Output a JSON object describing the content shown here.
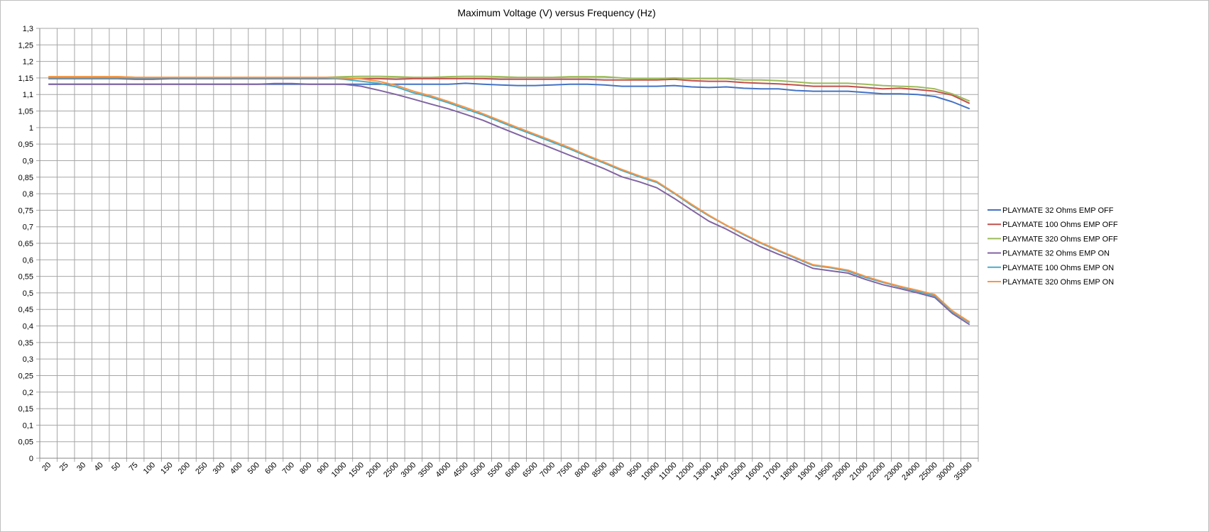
{
  "chart_data": {
    "type": "line",
    "title": "Maximum  Voltage  (V) versus  Frequency  (Hz)",
    "xlabel": "",
    "ylabel": "",
    "ylim": [
      0,
      1.3
    ],
    "y_ticks": [
      "0",
      "0,05",
      "0,1",
      "0,15",
      "0,2",
      "0,25",
      "0,3",
      "0,35",
      "0,4",
      "0,45",
      "0,5",
      "0,55",
      "0,6",
      "0,65",
      "0,7",
      "0,75",
      "0,8",
      "0,85",
      "0,9",
      "0,95",
      "1",
      "1,05",
      "1,1",
      "1,15",
      "1,2",
      "1,25",
      "1,3"
    ],
    "grid": true,
    "legend_position": "right",
    "categories": [
      "20",
      "25",
      "30",
      "40",
      "50",
      "75",
      "100",
      "150",
      "200",
      "250",
      "300",
      "400",
      "500",
      "600",
      "700",
      "800",
      "900",
      "1000",
      "1500",
      "2000",
      "2500",
      "3000",
      "3500",
      "4000",
      "4500",
      "5000",
      "5500",
      "6000",
      "6500",
      "7000",
      "7500",
      "8000",
      "8500",
      "9000",
      "9500",
      "10000",
      "11000",
      "12000",
      "13000",
      "14000",
      "15000",
      "16000",
      "17000",
      "18000",
      "19000",
      "19500",
      "20000",
      "21000",
      "22000",
      "23000",
      "24000",
      "25000",
      "30000",
      "35000"
    ],
    "series": [
      {
        "name": "PLAYMATE 32 Ohms EMP OFF",
        "color": "#4472c4",
        "values": [
          1.131,
          1.131,
          1.131,
          1.131,
          1.131,
          1.131,
          1.131,
          1.131,
          1.131,
          1.131,
          1.131,
          1.131,
          1.131,
          1.131,
          1.131,
          1.131,
          1.131,
          1.131,
          1.131,
          1.131,
          1.131,
          1.131,
          1.131,
          1.131,
          1.134,
          1.131,
          1.129,
          1.127,
          1.127,
          1.129,
          1.131,
          1.131,
          1.129,
          1.125,
          1.125,
          1.125,
          1.127,
          1.123,
          1.121,
          1.123,
          1.119,
          1.117,
          1.117,
          1.112,
          1.11,
          1.11,
          1.11,
          1.106,
          1.102,
          1.102,
          1.1,
          1.094,
          1.078,
          1.057
        ]
      },
      {
        "name": "PLAYMATE 100 Ohms EMP OFF",
        "color": "#c0504d",
        "values": [
          1.148,
          1.148,
          1.148,
          1.148,
          1.148,
          1.146,
          1.146,
          1.148,
          1.148,
          1.148,
          1.148,
          1.148,
          1.148,
          1.148,
          1.148,
          1.148,
          1.148,
          1.148,
          1.148,
          1.148,
          1.146,
          1.148,
          1.148,
          1.148,
          1.148,
          1.148,
          1.146,
          1.146,
          1.146,
          1.146,
          1.146,
          1.146,
          1.144,
          1.144,
          1.144,
          1.144,
          1.146,
          1.142,
          1.14,
          1.14,
          1.136,
          1.134,
          1.132,
          1.129,
          1.125,
          1.125,
          1.125,
          1.121,
          1.117,
          1.119,
          1.115,
          1.11,
          1.098,
          1.073
        ]
      },
      {
        "name": "PLAYMATE 320 Ohms EMP OFF",
        "color": "#9bbb59",
        "values": [
          1.154,
          1.154,
          1.154,
          1.154,
          1.154,
          1.152,
          1.152,
          1.152,
          1.152,
          1.152,
          1.152,
          1.152,
          1.152,
          1.152,
          1.152,
          1.152,
          1.152,
          1.154,
          1.155,
          1.155,
          1.154,
          1.152,
          1.152,
          1.154,
          1.155,
          1.155,
          1.154,
          1.152,
          1.152,
          1.152,
          1.154,
          1.154,
          1.154,
          1.15,
          1.148,
          1.148,
          1.15,
          1.148,
          1.148,
          1.148,
          1.144,
          1.144,
          1.142,
          1.138,
          1.134,
          1.134,
          1.134,
          1.131,
          1.127,
          1.125,
          1.123,
          1.117,
          1.102,
          1.08
        ]
      },
      {
        "name": "PLAYMATE 32 Ohms EMP ON",
        "color": "#8064a2",
        "values": [
          1.131,
          1.131,
          1.131,
          1.131,
          1.131,
          1.131,
          1.131,
          1.131,
          1.131,
          1.131,
          1.131,
          1.131,
          1.131,
          1.133,
          1.133,
          1.131,
          1.131,
          1.131,
          1.125,
          1.113,
          1.1,
          1.086,
          1.071,
          1.057,
          1.04,
          1.022,
          1.0,
          0.979,
          0.958,
          0.937,
          0.916,
          0.896,
          0.875,
          0.851,
          0.836,
          0.818,
          0.786,
          0.751,
          0.717,
          0.693,
          0.665,
          0.639,
          0.617,
          0.597,
          0.574,
          0.567,
          0.56,
          0.541,
          0.525,
          0.513,
          0.5,
          0.486,
          0.438,
          0.404
        ]
      },
      {
        "name": "PLAYMATE 100 Ohms EMP ON",
        "color": "#4bacc6",
        "values": [
          1.15,
          1.15,
          1.15,
          1.15,
          1.15,
          1.15,
          1.15,
          1.15,
          1.15,
          1.15,
          1.15,
          1.15,
          1.15,
          1.15,
          1.15,
          1.15,
          1.15,
          1.146,
          1.14,
          1.134,
          1.123,
          1.105,
          1.092,
          1.075,
          1.056,
          1.038,
          1.017,
          0.996,
          0.976,
          0.956,
          0.935,
          0.913,
          0.892,
          0.87,
          0.851,
          0.834,
          0.801,
          0.765,
          0.733,
          0.704,
          0.676,
          0.65,
          0.627,
          0.605,
          0.583,
          0.576,
          0.566,
          0.547,
          0.532,
          0.518,
          0.505,
          0.491,
          0.443,
          0.41
        ]
      },
      {
        "name": "PLAYMATE 320 Ohms EMP ON",
        "color": "#f79646",
        "values": [
          1.154,
          1.154,
          1.154,
          1.154,
          1.154,
          1.152,
          1.152,
          1.152,
          1.152,
          1.152,
          1.152,
          1.152,
          1.152,
          1.152,
          1.152,
          1.152,
          1.152,
          1.15,
          1.147,
          1.14,
          1.128,
          1.11,
          1.096,
          1.079,
          1.061,
          1.042,
          1.021,
          1.0,
          0.98,
          0.96,
          0.939,
          0.916,
          0.895,
          0.873,
          0.854,
          0.837,
          0.803,
          0.768,
          0.735,
          0.705,
          0.678,
          0.652,
          0.629,
          0.607,
          0.585,
          0.578,
          0.569,
          0.55,
          0.534,
          0.52,
          0.508,
          0.495,
          0.446,
          0.412
        ]
      }
    ]
  }
}
